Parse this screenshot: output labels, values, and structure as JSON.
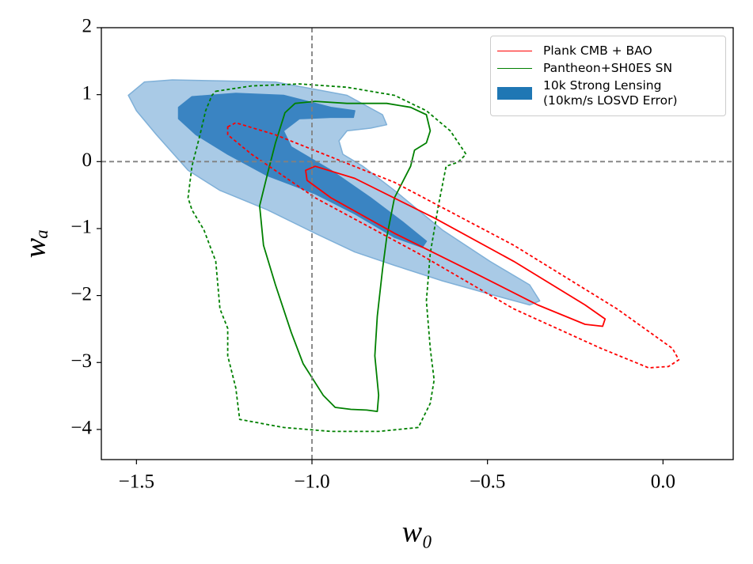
{
  "chart_data": {
    "type": "contour",
    "x_label": "w₀",
    "y_label": "wₐ",
    "xlim": [
      -1.6,
      0.2
    ],
    "ylim": [
      -4.45,
      2
    ],
    "xticks": [
      {
        "value": -1.5,
        "label": "−1.5"
      },
      {
        "value": -1.0,
        "label": "−1.0"
      },
      {
        "value": -0.5,
        "label": "−0.5"
      },
      {
        "value": 0.0,
        "label": "0.0"
      }
    ],
    "yticks": [
      {
        "value": -4,
        "label": "−4"
      },
      {
        "value": -3,
        "label": "−3"
      },
      {
        "value": -2,
        "label": "−2"
      },
      {
        "value": -1,
        "label": "−1"
      },
      0,
      1,
      2
    ],
    "reference_lines": {
      "x": [
        -1.0
      ],
      "y": [
        0
      ],
      "color": "#808080"
    },
    "legend": "upper right",
    "series": [
      {
        "name": "10k Strong Lensing\n(10km/s LOSVD Error)",
        "color": "#1f77b4",
        "contours": [
          {
            "fill": "#a9cae6",
            "edge": "#7fb0d8",
            "dashed": false,
            "x": [
              -1.523,
              -1.477,
              -1.398,
              -1.104,
              -0.9,
              -0.799,
              -0.787,
              -0.833,
              -0.9,
              -0.923,
              -0.912,
              -0.855,
              -0.765,
              -0.629,
              -0.493,
              -0.38,
              -0.351,
              -0.38,
              -0.493,
              -0.629,
              -0.765,
              -0.878,
              -0.991,
              -1.127,
              -1.262,
              -1.353,
              -1.443,
              -1.5
            ],
            "y": [
              0.99,
              1.19,
              1.22,
              1.19,
              0.99,
              0.7,
              0.55,
              0.5,
              0.46,
              0.31,
              0.11,
              -0.07,
              -0.43,
              -1.02,
              -1.49,
              -1.84,
              -2.08,
              -2.14,
              -1.98,
              -1.78,
              -1.55,
              -1.35,
              -1.07,
              -0.72,
              -0.43,
              -0.13,
              0.4,
              0.76
            ]
          },
          {
            "fill": "#3a84c2",
            "edge": "#3a84c2",
            "dashed": false,
            "x": [
              -1.38,
              -1.342,
              -1.217,
              -1.081,
              -0.946,
              -0.878,
              -0.882,
              -0.946,
              -1.036,
              -1.081,
              -1.059,
              -0.946,
              -0.833,
              -0.742,
              -0.674,
              -0.686,
              -0.765,
              -0.878,
              -0.991,
              -1.127,
              -1.24,
              -1.33,
              -1.38
            ],
            "y": [
              0.81,
              0.97,
              1.02,
              0.99,
              0.81,
              0.76,
              0.66,
              0.66,
              0.64,
              0.46,
              0.22,
              -0.13,
              -0.54,
              -0.9,
              -1.19,
              -1.28,
              -1.13,
              -0.78,
              -0.48,
              -0.21,
              0.11,
              0.4,
              0.64
            ]
          }
        ]
      },
      {
        "name": "Pantheon+SH0ES SN",
        "color": "#008000",
        "contours": [
          {
            "dashed": false,
            "x": [
              -0.991,
              -0.9,
              -0.787,
              -0.719,
              -0.674,
              -0.663,
              -0.674,
              -0.708,
              -0.719,
              -0.765,
              -0.787,
              -0.799,
              -0.814,
              -0.821,
              -0.81,
              -0.814,
              -0.844,
              -0.889,
              -0.934,
              -0.968,
              -1.025,
              -1.059,
              -1.104,
              -1.138,
              -1.149,
              -1.127,
              -1.104,
              -1.077,
              -1.048
            ],
            "y": [
              0.9,
              0.87,
              0.87,
              0.81,
              0.7,
              0.46,
              0.28,
              0.17,
              -0.07,
              -0.54,
              -1.13,
              -1.61,
              -2.31,
              -2.9,
              -3.49,
              -3.73,
              -3.71,
              -3.7,
              -3.67,
              -3.49,
              -3.02,
              -2.55,
              -1.84,
              -1.25,
              -0.66,
              -0.19,
              0.28,
              0.73,
              0.87
            ]
          },
          {
            "dashed": true,
            "x": [
              -1.274,
              -1.172,
              -1.036,
              -0.9,
              -0.765,
              -0.674,
              -0.606,
              -0.561,
              -0.584,
              -0.618,
              -0.64,
              -0.663,
              -0.674,
              -0.663,
              -0.652,
              -0.663,
              -0.697,
              -0.81,
              -0.946,
              -1.081,
              -1.206,
              -1.217,
              -1.24,
              -1.24,
              -1.262,
              -1.274,
              -1.308,
              -1.342,
              -1.353,
              -1.342,
              -1.319,
              -1.303,
              -1.285
            ],
            "y": [
              1.05,
              1.13,
              1.16,
              1.11,
              0.99,
              0.76,
              0.46,
              0.11,
              -0.01,
              -0.07,
              -0.66,
              -1.37,
              -2.08,
              -2.79,
              -3.26,
              -3.61,
              -3.97,
              -4.03,
              -4.03,
              -3.97,
              -3.85,
              -3.38,
              -2.9,
              -2.49,
              -2.2,
              -1.49,
              -1.02,
              -0.72,
              -0.54,
              -0.07,
              0.4,
              0.76,
              0.99
            ]
          }
        ]
      },
      {
        "name": "Plank CMB + BAO",
        "color": "#ff0000",
        "contours": [
          {
            "dashed": false,
            "x": [
              -1.018,
              -0.991,
              -0.878,
              -0.652,
              -0.425,
              -0.222,
              -0.165,
              -0.172,
              -0.222,
              -0.357,
              -0.538,
              -0.765,
              -0.946,
              -1.014
            ],
            "y": [
              -0.13,
              -0.07,
              -0.25,
              -0.84,
              -1.49,
              -2.14,
              -2.35,
              -2.46,
              -2.43,
              -2.14,
              -1.66,
              -1.07,
              -0.54,
              -0.28
            ]
          },
          {
            "dashed": true,
            "x": [
              -1.24,
              -1.217,
              -1.104,
              -0.765,
              -0.425,
              -0.131,
              0.027,
              0.045,
              0.016,
              -0.041,
              -0.176,
              -0.425,
              -0.697,
              -0.991,
              -1.172,
              -1.24
            ],
            "y": [
              0.52,
              0.58,
              0.4,
              -0.31,
              -1.25,
              -2.2,
              -2.79,
              -2.96,
              -3.06,
              -3.08,
              -2.79,
              -2.2,
              -1.37,
              -0.54,
              0.11,
              0.4
            ]
          }
        ]
      }
    ],
    "legend_order": [
      2,
      1,
      0
    ]
  }
}
